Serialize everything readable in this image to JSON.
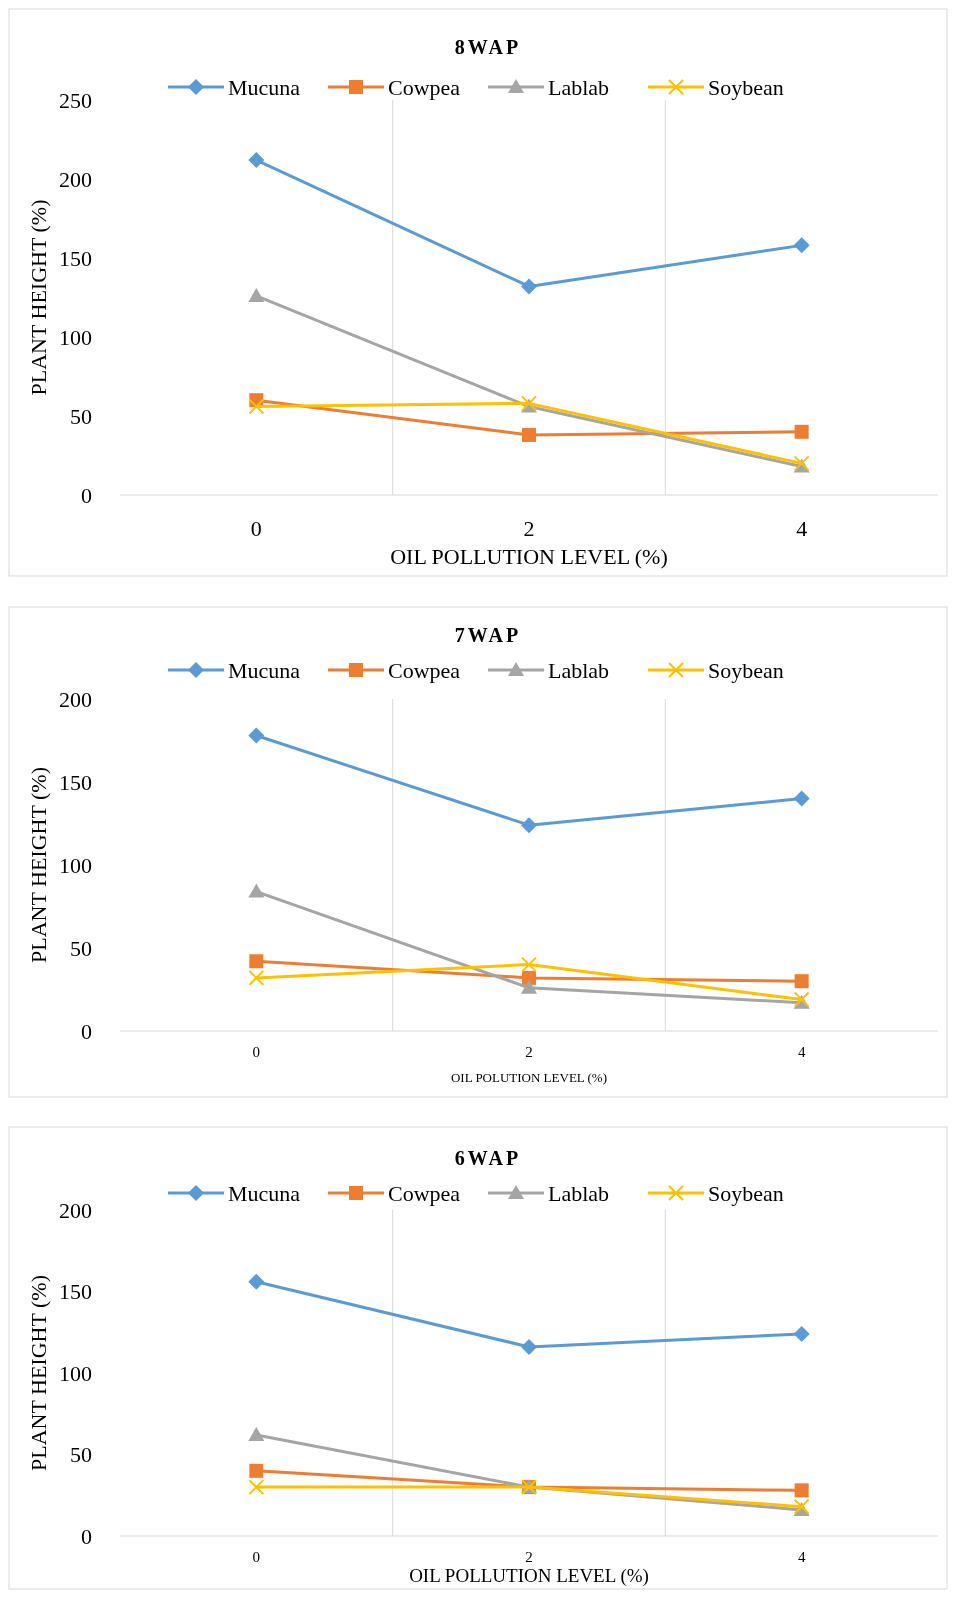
{
  "chart_data": [
    {
      "type": "line",
      "title": "8WAP",
      "xlabel": "OIL POLLUTION LEVEL (%)",
      "ylabel": "PLANT HEIGHT (%)",
      "categories": [
        "0",
        "2",
        "4"
      ],
      "ylim": [
        0,
        250
      ],
      "yticks": [
        0,
        50,
        100,
        150,
        200,
        250
      ],
      "grid": "x",
      "legend": "top",
      "series": [
        {
          "name": "Mucuna",
          "color": "#5b9bd5",
          "marker": "diamond",
          "values": [
            212,
            132,
            158
          ]
        },
        {
          "name": "Cowpea",
          "color": "#ed7d31",
          "marker": "square",
          "values": [
            60,
            38,
            40
          ]
        },
        {
          "name": "Lablab",
          "color": "#a5a5a5",
          "marker": "triangle",
          "values": [
            126,
            56,
            18
          ]
        },
        {
          "name": "Soybean",
          "color": "#ffc000",
          "marker": "cross",
          "values": [
            56,
            58,
            20
          ]
        }
      ]
    },
    {
      "type": "line",
      "title": "7WAP",
      "xlabel": "OIL POLUTION LEVEL (%)",
      "ylabel": "PLANT HEIGHT (%)",
      "categories": [
        "0",
        "2",
        "4"
      ],
      "ylim": [
        0,
        200
      ],
      "yticks": [
        0,
        50,
        100,
        150,
        200
      ],
      "grid": "x",
      "legend": "top",
      "series": [
        {
          "name": "Mucuna",
          "color": "#5b9bd5",
          "marker": "diamond",
          "values": [
            178,
            124,
            140
          ]
        },
        {
          "name": "Cowpea",
          "color": "#ed7d31",
          "marker": "square",
          "values": [
            42,
            32,
            30
          ]
        },
        {
          "name": "Lablab",
          "color": "#a5a5a5",
          "marker": "triangle",
          "values": [
            84,
            26,
            17
          ]
        },
        {
          "name": "Soybean",
          "color": "#ffc000",
          "marker": "cross",
          "values": [
            32,
            40,
            19
          ]
        }
      ]
    },
    {
      "type": "line",
      "title": "6WAP",
      "xlabel": "OIL POLLUTION LEVEL (%)",
      "ylabel": "PLANT HEIGHT (%)",
      "categories": [
        "0",
        "2",
        "4"
      ],
      "ylim": [
        0,
        200
      ],
      "yticks": [
        0,
        50,
        100,
        150,
        200
      ],
      "grid": "x",
      "legend": "top",
      "series": [
        {
          "name": "Mucuna",
          "color": "#5b9bd5",
          "marker": "diamond",
          "values": [
            156,
            116,
            124
          ]
        },
        {
          "name": "Cowpea",
          "color": "#ed7d31",
          "marker": "square",
          "values": [
            40,
            30,
            28
          ]
        },
        {
          "name": "Lablab",
          "color": "#a5a5a5",
          "marker": "triangle",
          "values": [
            62,
            30,
            16
          ]
        },
        {
          "name": "Soybean",
          "color": "#ffc000",
          "marker": "cross",
          "values": [
            30,
            30,
            18
          ]
        }
      ]
    }
  ]
}
